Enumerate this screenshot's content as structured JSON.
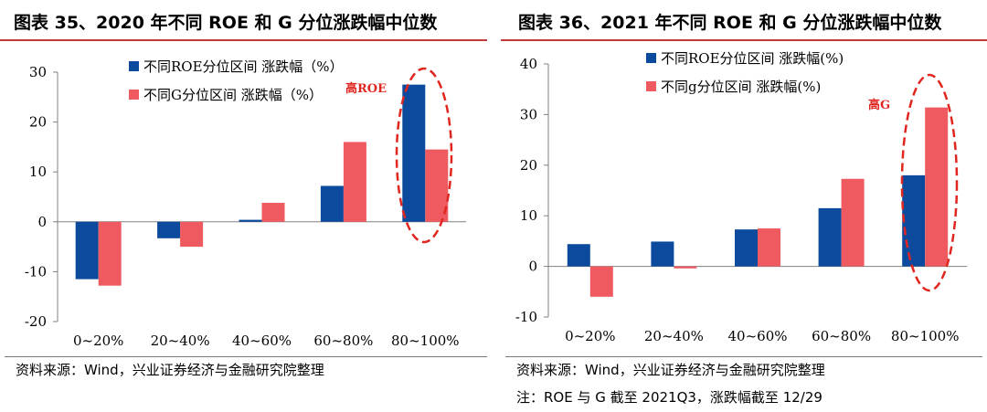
{
  "left": {
    "title": "图表 35、2020 年不同 ROE 和 G 分位涨跌幅中位数",
    "source": "资料来源：Wind，兴业证券经济与金融研究院整理"
  },
  "right": {
    "title": "图表 36、2021 年不同 ROE 和 G 分位涨跌幅中位数",
    "source": "资料来源：Wind，兴业证券经济与金融研究院整理",
    "note": "注：ROE 与 G 截至 2021Q3，涨跌幅截至 12/29"
  },
  "colors": {
    "roe": "#0b4a9c",
    "g": "#ee5a5f",
    "highlight": "#e0261f",
    "title_rule": "#bf3a3a"
  },
  "chart_data": [
    {
      "type": "bar",
      "categories": [
        "0~20%",
        "20~40%",
        "40~60%",
        "60~80%",
        "80~100%"
      ],
      "series": [
        {
          "name": "不同ROE分位区间 涨跌幅（%）",
          "values": [
            -11.5,
            -3.3,
            0.4,
            7.2,
            27.5
          ]
        },
        {
          "name": "不同G分位区间 涨跌幅（%）",
          "values": [
            -12.8,
            -5.0,
            3.8,
            16.0,
            14.5
          ]
        }
      ],
      "ylim": [
        -20,
        30
      ],
      "yticks": [
        30,
        20,
        10,
        0,
        -10,
        -20
      ],
      "ytick_labels": [
        "30",
        "20",
        "10",
        "0",
        "-10",
        "-20"
      ],
      "annotation": {
        "text": "高ROE",
        "category": "80~100%"
      },
      "grid": false,
      "legend": "top-left"
    },
    {
      "type": "bar",
      "categories": [
        "0~20%",
        "20~40%",
        "40~60%",
        "60~80%",
        "80~100%"
      ],
      "series": [
        {
          "name": "不同ROE分位区间 涨跌幅(%)",
          "values": [
            4.4,
            4.9,
            7.3,
            11.5,
            18.0
          ]
        },
        {
          "name": "不同g分位区间 涨跌幅(%)",
          "values": [
            -6.0,
            -0.4,
            7.5,
            17.3,
            31.4
          ]
        }
      ],
      "ylim": [
        -10,
        40
      ],
      "yticks": [
        40,
        30,
        20,
        10,
        0,
        -10
      ],
      "ytick_labels": [
        "40",
        "30",
        "20",
        "10",
        "0",
        "-10"
      ],
      "annotation": {
        "text": "高G",
        "category": "80~100%"
      },
      "grid": false,
      "legend": "top-center"
    }
  ]
}
